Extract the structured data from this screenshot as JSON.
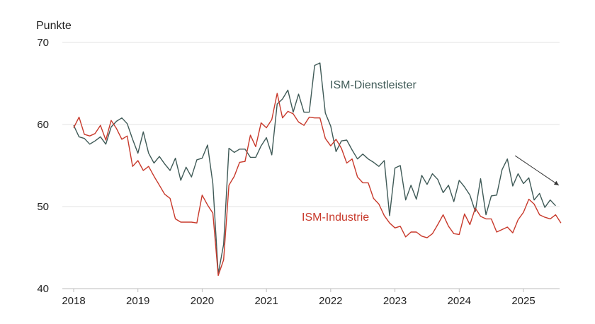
{
  "chart_data": {
    "type": "line",
    "ylabel": "Punkte",
    "ylim": [
      40,
      70
    ],
    "yticks": [
      40,
      50,
      60,
      70
    ],
    "xlim": [
      2018.0,
      2025.6
    ],
    "xticks": [
      2018,
      2019,
      2020,
      2021,
      2022,
      2023,
      2024,
      2025
    ],
    "grid": "horizontal",
    "colors": {
      "services": "#3f5a57",
      "manufacturing": "#c8392b",
      "arrow": "#333333"
    },
    "annotations": [
      {
        "type": "arrow",
        "from": [
          2024.87,
          56.2
        ],
        "to": [
          2025.55,
          52.6
        ]
      }
    ],
    "series": [
      {
        "name": "ISM-Dienstleister",
        "key": "services",
        "start": 2018.0,
        "step": 0.083333,
        "values": [
          59.9,
          58.5,
          58.3,
          57.6,
          58.0,
          58.5,
          57.6,
          59.7,
          60.4,
          60.8,
          60.1,
          58.2,
          56.5,
          59.1,
          56.5,
          55.3,
          56.1,
          55.2,
          54.4,
          55.9,
          53.2,
          54.8,
          53.6,
          55.7,
          55.9,
          57.5,
          52.8,
          41.8,
          45.4,
          57.1,
          56.6,
          57.0,
          57.0,
          56.0,
          56.0,
          57.4,
          58.4,
          56.3,
          62.5,
          63.1,
          64.2,
          61.5,
          63.7,
          61.5,
          61.5,
          67.2,
          67.5,
          61.4,
          59.8,
          56.7,
          58.0,
          58.1,
          56.9,
          55.8,
          56.4,
          55.8,
          55.4,
          54.9,
          55.6,
          48.9,
          54.7,
          55.0,
          50.8,
          52.6,
          50.9,
          53.8,
          52.7,
          54.0,
          53.3,
          51.7,
          52.6,
          50.6,
          53.2,
          52.4,
          51.4,
          49.4,
          53.4,
          49.0,
          51.3,
          51.4,
          54.5,
          55.8,
          52.5,
          54.0,
          52.8,
          53.5,
          50.8,
          51.6,
          49.9,
          50.8,
          50.1
        ]
      },
      {
        "name": "ISM-Industrie",
        "key": "manufacturing",
        "start": 2018.0,
        "step": 0.083333,
        "values": [
          59.6,
          60.9,
          58.8,
          58.6,
          58.9,
          59.9,
          58.1,
          60.5,
          59.5,
          58.2,
          58.6,
          54.9,
          55.6,
          54.4,
          54.9,
          53.7,
          52.6,
          51.5,
          51.0,
          48.5,
          48.1,
          48.1,
          48.1,
          48.0,
          51.4,
          50.2,
          49.2,
          41.6,
          43.5,
          52.6,
          53.7,
          55.4,
          55.5,
          58.7,
          57.3,
          60.2,
          59.6,
          60.6,
          63.8,
          60.8,
          61.6,
          61.3,
          60.3,
          59.9,
          60.9,
          60.8,
          60.8,
          58.3,
          57.4,
          58.2,
          57.1,
          55.3,
          55.8,
          53.6,
          52.9,
          52.9,
          51.0,
          50.3,
          48.9,
          48.0,
          47.4,
          47.6,
          46.3,
          46.9,
          46.9,
          46.4,
          46.2,
          46.7,
          47.8,
          49.0,
          47.6,
          46.7,
          46.6,
          49.1,
          47.8,
          49.8,
          48.8,
          48.5,
          48.5,
          46.9,
          47.2,
          47.5,
          46.8,
          48.4,
          49.3,
          50.9,
          50.3,
          49.0,
          48.7,
          48.5,
          49.0,
          48.0
        ]
      }
    ]
  }
}
